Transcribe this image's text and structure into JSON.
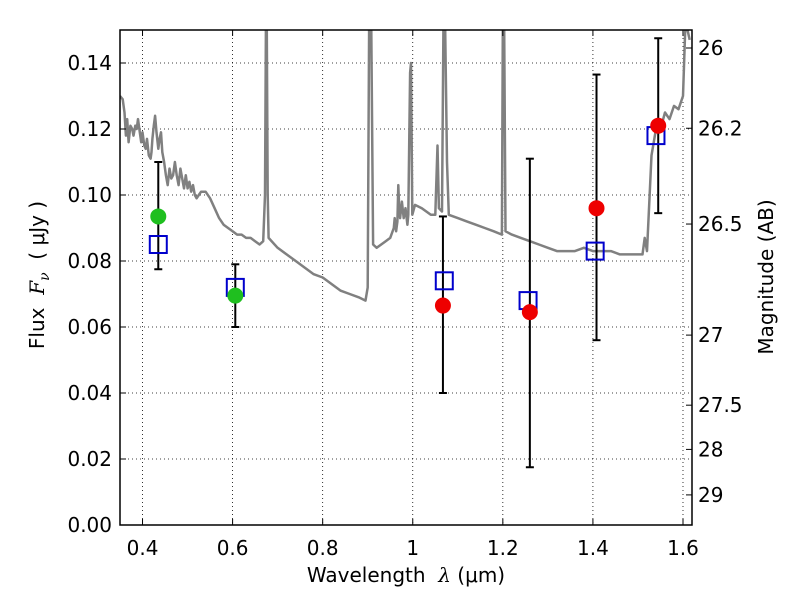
{
  "chart_data": {
    "type": "scatter",
    "xlabel": {
      "prefix": "Wavelength  ",
      "symbol": "λ",
      "unit": " (μm)"
    },
    "ylabel": {
      "prefix": "Flux  ",
      "symbol": "F",
      "subscript": "ν",
      "unit": "  ( μJy )"
    },
    "y2label": "Magnitude (AB)",
    "xlim": [
      0.35,
      1.62
    ],
    "ylim": [
      0,
      0.15
    ],
    "x_ticks": [
      {
        "value": 0.4,
        "label": "0.4"
      },
      {
        "value": 0.6,
        "label": "0.6"
      },
      {
        "value": 0.8,
        "label": "0.8"
      },
      {
        "value": 1.0,
        "label": "1"
      },
      {
        "value": 1.2,
        "label": "1.2"
      },
      {
        "value": 1.4,
        "label": "1.4"
      },
      {
        "value": 1.6,
        "label": "1.6"
      }
    ],
    "y_ticks": [
      {
        "value": 0.0,
        "label": "0.00"
      },
      {
        "value": 0.02,
        "label": "0.02"
      },
      {
        "value": 0.04,
        "label": "0.04"
      },
      {
        "value": 0.06,
        "label": "0.06"
      },
      {
        "value": 0.08,
        "label": "0.08"
      },
      {
        "value": 0.1,
        "label": "0.10"
      },
      {
        "value": 0.12,
        "label": "0.12"
      },
      {
        "value": 0.14,
        "label": "0.14"
      }
    ],
    "y2_ticks": [
      {
        "mag": 26,
        "label": "26"
      },
      {
        "mag": 26.2,
        "label": "26.2"
      },
      {
        "mag": 26.5,
        "label": "26.5"
      },
      {
        "mag": 27,
        "label": "27"
      },
      {
        "mag": 27.5,
        "label": "27.5"
      },
      {
        "mag": 28,
        "label": "28"
      },
      {
        "mag": 29,
        "label": "29"
      }
    ],
    "grid": true,
    "series": [
      {
        "kind": "spectrum",
        "color": "#808080",
        "points": [
          [
            0.35,
            0.13
          ],
          [
            0.356,
            0.129
          ],
          [
            0.36,
            0.125
          ],
          [
            0.363,
            0.118
          ],
          [
            0.366,
            0.123
          ],
          [
            0.369,
            0.116
          ],
          [
            0.373,
            0.121
          ],
          [
            0.377,
            0.12
          ],
          [
            0.38,
            0.118
          ],
          [
            0.384,
            0.121
          ],
          [
            0.387,
            0.12
          ],
          [
            0.39,
            0.123
          ],
          [
            0.394,
            0.119
          ],
          [
            0.397,
            0.116
          ],
          [
            0.4,
            0.119
          ],
          [
            0.404,
            0.115
          ],
          [
            0.407,
            0.114
          ],
          [
            0.41,
            0.117
          ],
          [
            0.414,
            0.112
          ],
          [
            0.418,
            0.111
          ],
          [
            0.42,
            0.113
          ],
          [
            0.422,
            0.117
          ],
          [
            0.425,
            0.121
          ],
          [
            0.428,
            0.124
          ],
          [
            0.431,
            0.119
          ],
          [
            0.435,
            0.114
          ],
          [
            0.438,
            0.117
          ],
          [
            0.441,
            0.119
          ],
          [
            0.444,
            0.113
          ],
          [
            0.448,
            0.11
          ],
          [
            0.452,
            0.106
          ],
          [
            0.456,
            0.103
          ],
          [
            0.46,
            0.108
          ],
          [
            0.464,
            0.105
          ],
          [
            0.468,
            0.106
          ],
          [
            0.472,
            0.11
          ],
          [
            0.476,
            0.106
          ],
          [
            0.48,
            0.103
          ],
          [
            0.484,
            0.108
          ],
          [
            0.488,
            0.105
          ],
          [
            0.492,
            0.102
          ],
          [
            0.496,
            0.106
          ],
          [
            0.5,
            0.102
          ],
          [
            0.504,
            0.104
          ],
          [
            0.508,
            0.101
          ],
          [
            0.512,
            0.103
          ],
          [
            0.516,
            0.1
          ],
          [
            0.52,
            0.099
          ],
          [
            0.525,
            0.1
          ],
          [
            0.53,
            0.101
          ],
          [
            0.54,
            0.101
          ],
          [
            0.55,
            0.099
          ],
          [
            0.56,
            0.096
          ],
          [
            0.57,
            0.093
          ],
          [
            0.58,
            0.091
          ],
          [
            0.59,
            0.09
          ],
          [
            0.6,
            0.089
          ],
          [
            0.61,
            0.088
          ],
          [
            0.62,
            0.088
          ],
          [
            0.63,
            0.087
          ],
          [
            0.64,
            0.087
          ],
          [
            0.65,
            0.086
          ],
          [
            0.66,
            0.085
          ],
          [
            0.668,
            0.086
          ],
          [
            0.672,
            0.1
          ],
          [
            0.674,
            0.15
          ],
          [
            0.676,
            0.15
          ],
          [
            0.678,
            0.1
          ],
          [
            0.68,
            0.087
          ],
          [
            0.7,
            0.084
          ],
          [
            0.72,
            0.082
          ],
          [
            0.74,
            0.08
          ],
          [
            0.76,
            0.078
          ],
          [
            0.78,
            0.076
          ],
          [
            0.8,
            0.075
          ],
          [
            0.82,
            0.073
          ],
          [
            0.84,
            0.071
          ],
          [
            0.86,
            0.07
          ],
          [
            0.88,
            0.069
          ],
          [
            0.895,
            0.068
          ],
          [
            0.9,
            0.072
          ],
          [
            0.903,
            0.15
          ],
          [
            0.908,
            0.15
          ],
          [
            0.912,
            0.085
          ],
          [
            0.92,
            0.084
          ],
          [
            0.93,
            0.085
          ],
          [
            0.94,
            0.086
          ],
          [
            0.95,
            0.087
          ],
          [
            0.958,
            0.09
          ],
          [
            0.96,
            0.093
          ],
          [
            0.963,
            0.089
          ],
          [
            0.966,
            0.092
          ],
          [
            0.968,
            0.103
          ],
          [
            0.97,
            0.096
          ],
          [
            0.972,
            0.093
          ],
          [
            0.976,
            0.098
          ],
          [
            0.98,
            0.093
          ],
          [
            0.984,
            0.096
          ],
          [
            0.988,
            0.091
          ],
          [
            0.99,
            0.094
          ],
          [
            0.994,
            0.137
          ],
          [
            0.996,
            0.14
          ],
          [
            0.999,
            0.094
          ],
          [
            1.005,
            0.097
          ],
          [
            1.02,
            0.096
          ],
          [
            1.04,
            0.094
          ],
          [
            1.05,
            0.094
          ],
          [
            1.055,
            0.115
          ],
          [
            1.058,
            0.096
          ],
          [
            1.065,
            0.095
          ],
          [
            1.068,
            0.15
          ],
          [
            1.072,
            0.15
          ],
          [
            1.076,
            0.11
          ],
          [
            1.08,
            0.094
          ],
          [
            1.1,
            0.093
          ],
          [
            1.12,
            0.092
          ],
          [
            1.14,
            0.091
          ],
          [
            1.16,
            0.09
          ],
          [
            1.18,
            0.089
          ],
          [
            1.198,
            0.088
          ],
          [
            1.2,
            0.15
          ],
          [
            1.203,
            0.15
          ],
          [
            1.206,
            0.089
          ],
          [
            1.22,
            0.088
          ],
          [
            1.24,
            0.087
          ],
          [
            1.26,
            0.086
          ],
          [
            1.28,
            0.085
          ],
          [
            1.3,
            0.084
          ],
          [
            1.32,
            0.083
          ],
          [
            1.34,
            0.083
          ],
          [
            1.36,
            0.083
          ],
          [
            1.38,
            0.084
          ],
          [
            1.4,
            0.083
          ],
          [
            1.42,
            0.083
          ],
          [
            1.44,
            0.083
          ],
          [
            1.46,
            0.082
          ],
          [
            1.48,
            0.082
          ],
          [
            1.5,
            0.082
          ],
          [
            1.51,
            0.082
          ],
          [
            1.515,
            0.087
          ],
          [
            1.52,
            0.083
          ],
          [
            1.53,
            0.112
          ],
          [
            1.54,
            0.12
          ],
          [
            1.55,
            0.12
          ],
          [
            1.56,
            0.125
          ],
          [
            1.57,
            0.123
          ],
          [
            1.58,
            0.127
          ],
          [
            1.59,
            0.126
          ],
          [
            1.6,
            0.13
          ],
          [
            1.605,
            0.15
          ],
          [
            1.61,
            0.15
          ],
          [
            1.615,
            0.147
          ]
        ]
      },
      {
        "kind": "model-photometry",
        "marker": "open-square",
        "color": "#0000cc",
        "points": [
          {
            "x": 0.435,
            "y": 0.085
          },
          {
            "x": 0.606,
            "y": 0.072
          },
          {
            "x": 1.07,
            "y": 0.074
          },
          {
            "x": 1.256,
            "y": 0.068
          },
          {
            "x": 1.405,
            "y": 0.083
          },
          {
            "x": 1.54,
            "y": 0.118
          }
        ]
      },
      {
        "kind": "observed",
        "marker": "filled-circle",
        "points": [
          {
            "x": 0.435,
            "y": 0.0935,
            "yerr": [
              0.0775,
              0.11
            ],
            "color": "#1fbf1f"
          },
          {
            "x": 0.606,
            "y": 0.0695,
            "yerr": [
              0.06,
              0.079
            ],
            "color": "#1fbf1f"
          },
          {
            "x": 1.067,
            "y": 0.0665,
            "yerr": [
              0.04,
              0.0935
            ],
            "color": "#ee0000"
          },
          {
            "x": 1.26,
            "y": 0.0645,
            "yerr": [
              0.0175,
              0.111
            ],
            "color": "#ee0000"
          },
          {
            "x": 1.408,
            "y": 0.096,
            "yerr": [
              0.056,
              0.1365
            ],
            "color": "#ee0000"
          },
          {
            "x": 1.545,
            "y": 0.121,
            "yerr": [
              0.0945,
              0.1475
            ],
            "color": "#ee0000"
          }
        ]
      }
    ]
  }
}
